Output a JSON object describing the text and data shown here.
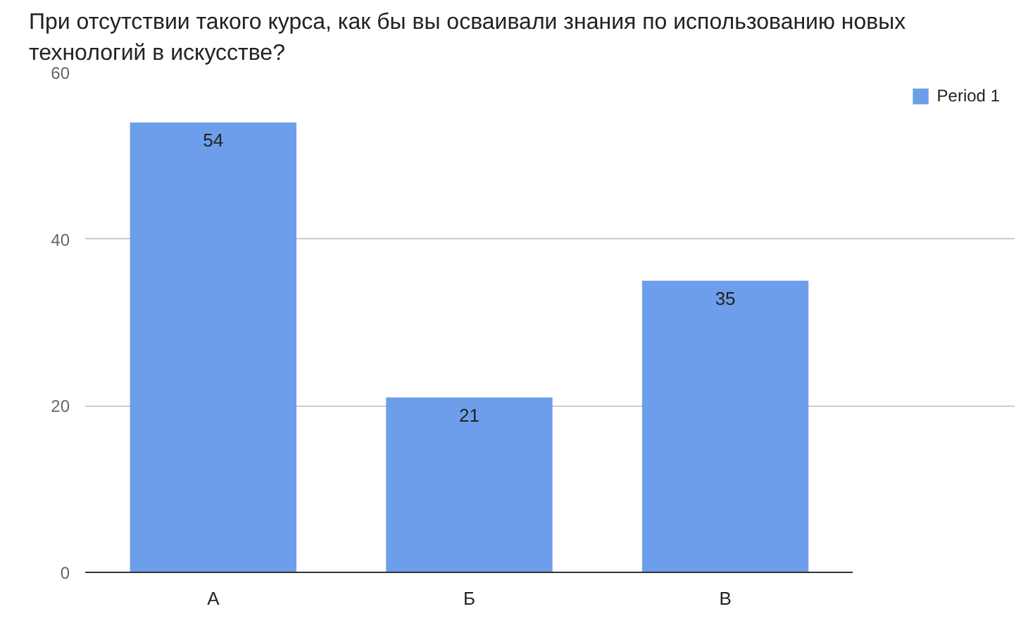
{
  "chart_data": {
    "type": "bar",
    "title": "При отсутствии такого курса, как бы вы осваивали знания по использованию новых технологий в искусстве?",
    "categories": [
      "А",
      "Б",
      "В"
    ],
    "series": [
      {
        "name": "Period 1",
        "color": "#6d9eeb",
        "values": [
          54,
          21,
          35
        ]
      }
    ],
    "ylim": [
      0,
      60
    ],
    "yticks": [
      0,
      20,
      40,
      60
    ],
    "grid": "y",
    "legend": "top right",
    "data_labels": true
  }
}
